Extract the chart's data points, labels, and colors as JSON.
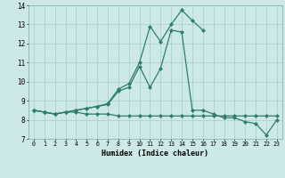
{
  "xlabel": "Humidex (Indice chaleur)",
  "x_values": [
    0,
    1,
    2,
    3,
    4,
    5,
    6,
    7,
    8,
    9,
    10,
    11,
    12,
    13,
    14,
    15,
    16,
    17,
    18,
    19,
    20,
    21,
    22,
    23
  ],
  "line1": [
    8.5,
    8.4,
    8.3,
    8.4,
    8.4,
    8.3,
    8.3,
    8.3,
    8.2,
    8.2,
    8.2,
    8.2,
    8.2,
    8.2,
    8.2,
    8.2,
    8.2,
    8.2,
    8.2,
    8.2,
    8.2,
    8.2,
    8.2,
    8.2
  ],
  "line2": [
    8.5,
    8.4,
    8.3,
    8.4,
    8.5,
    8.6,
    8.7,
    8.8,
    9.5,
    9.7,
    10.8,
    9.7,
    10.7,
    12.7,
    12.6,
    8.5,
    8.5,
    8.3,
    8.1,
    8.1,
    7.9,
    7.8,
    7.2,
    8.0
  ],
  "line3": [
    8.5,
    8.4,
    8.3,
    8.4,
    8.5,
    8.6,
    8.7,
    8.85,
    9.6,
    9.9,
    11.0,
    12.9,
    12.1,
    13.0,
    13.75,
    13.2,
    12.7,
    null,
    null,
    null,
    null,
    null,
    null,
    null
  ],
  "line_color": "#2e7d6e",
  "bg_color": "#cce8e8",
  "grid_color": "#aacccc",
  "ylim": [
    7,
    14
  ],
  "yticks": [
    7,
    8,
    9,
    10,
    11,
    12,
    13,
    14
  ],
  "marker": "D",
  "marker_size": 2.0,
  "line_width": 0.9
}
